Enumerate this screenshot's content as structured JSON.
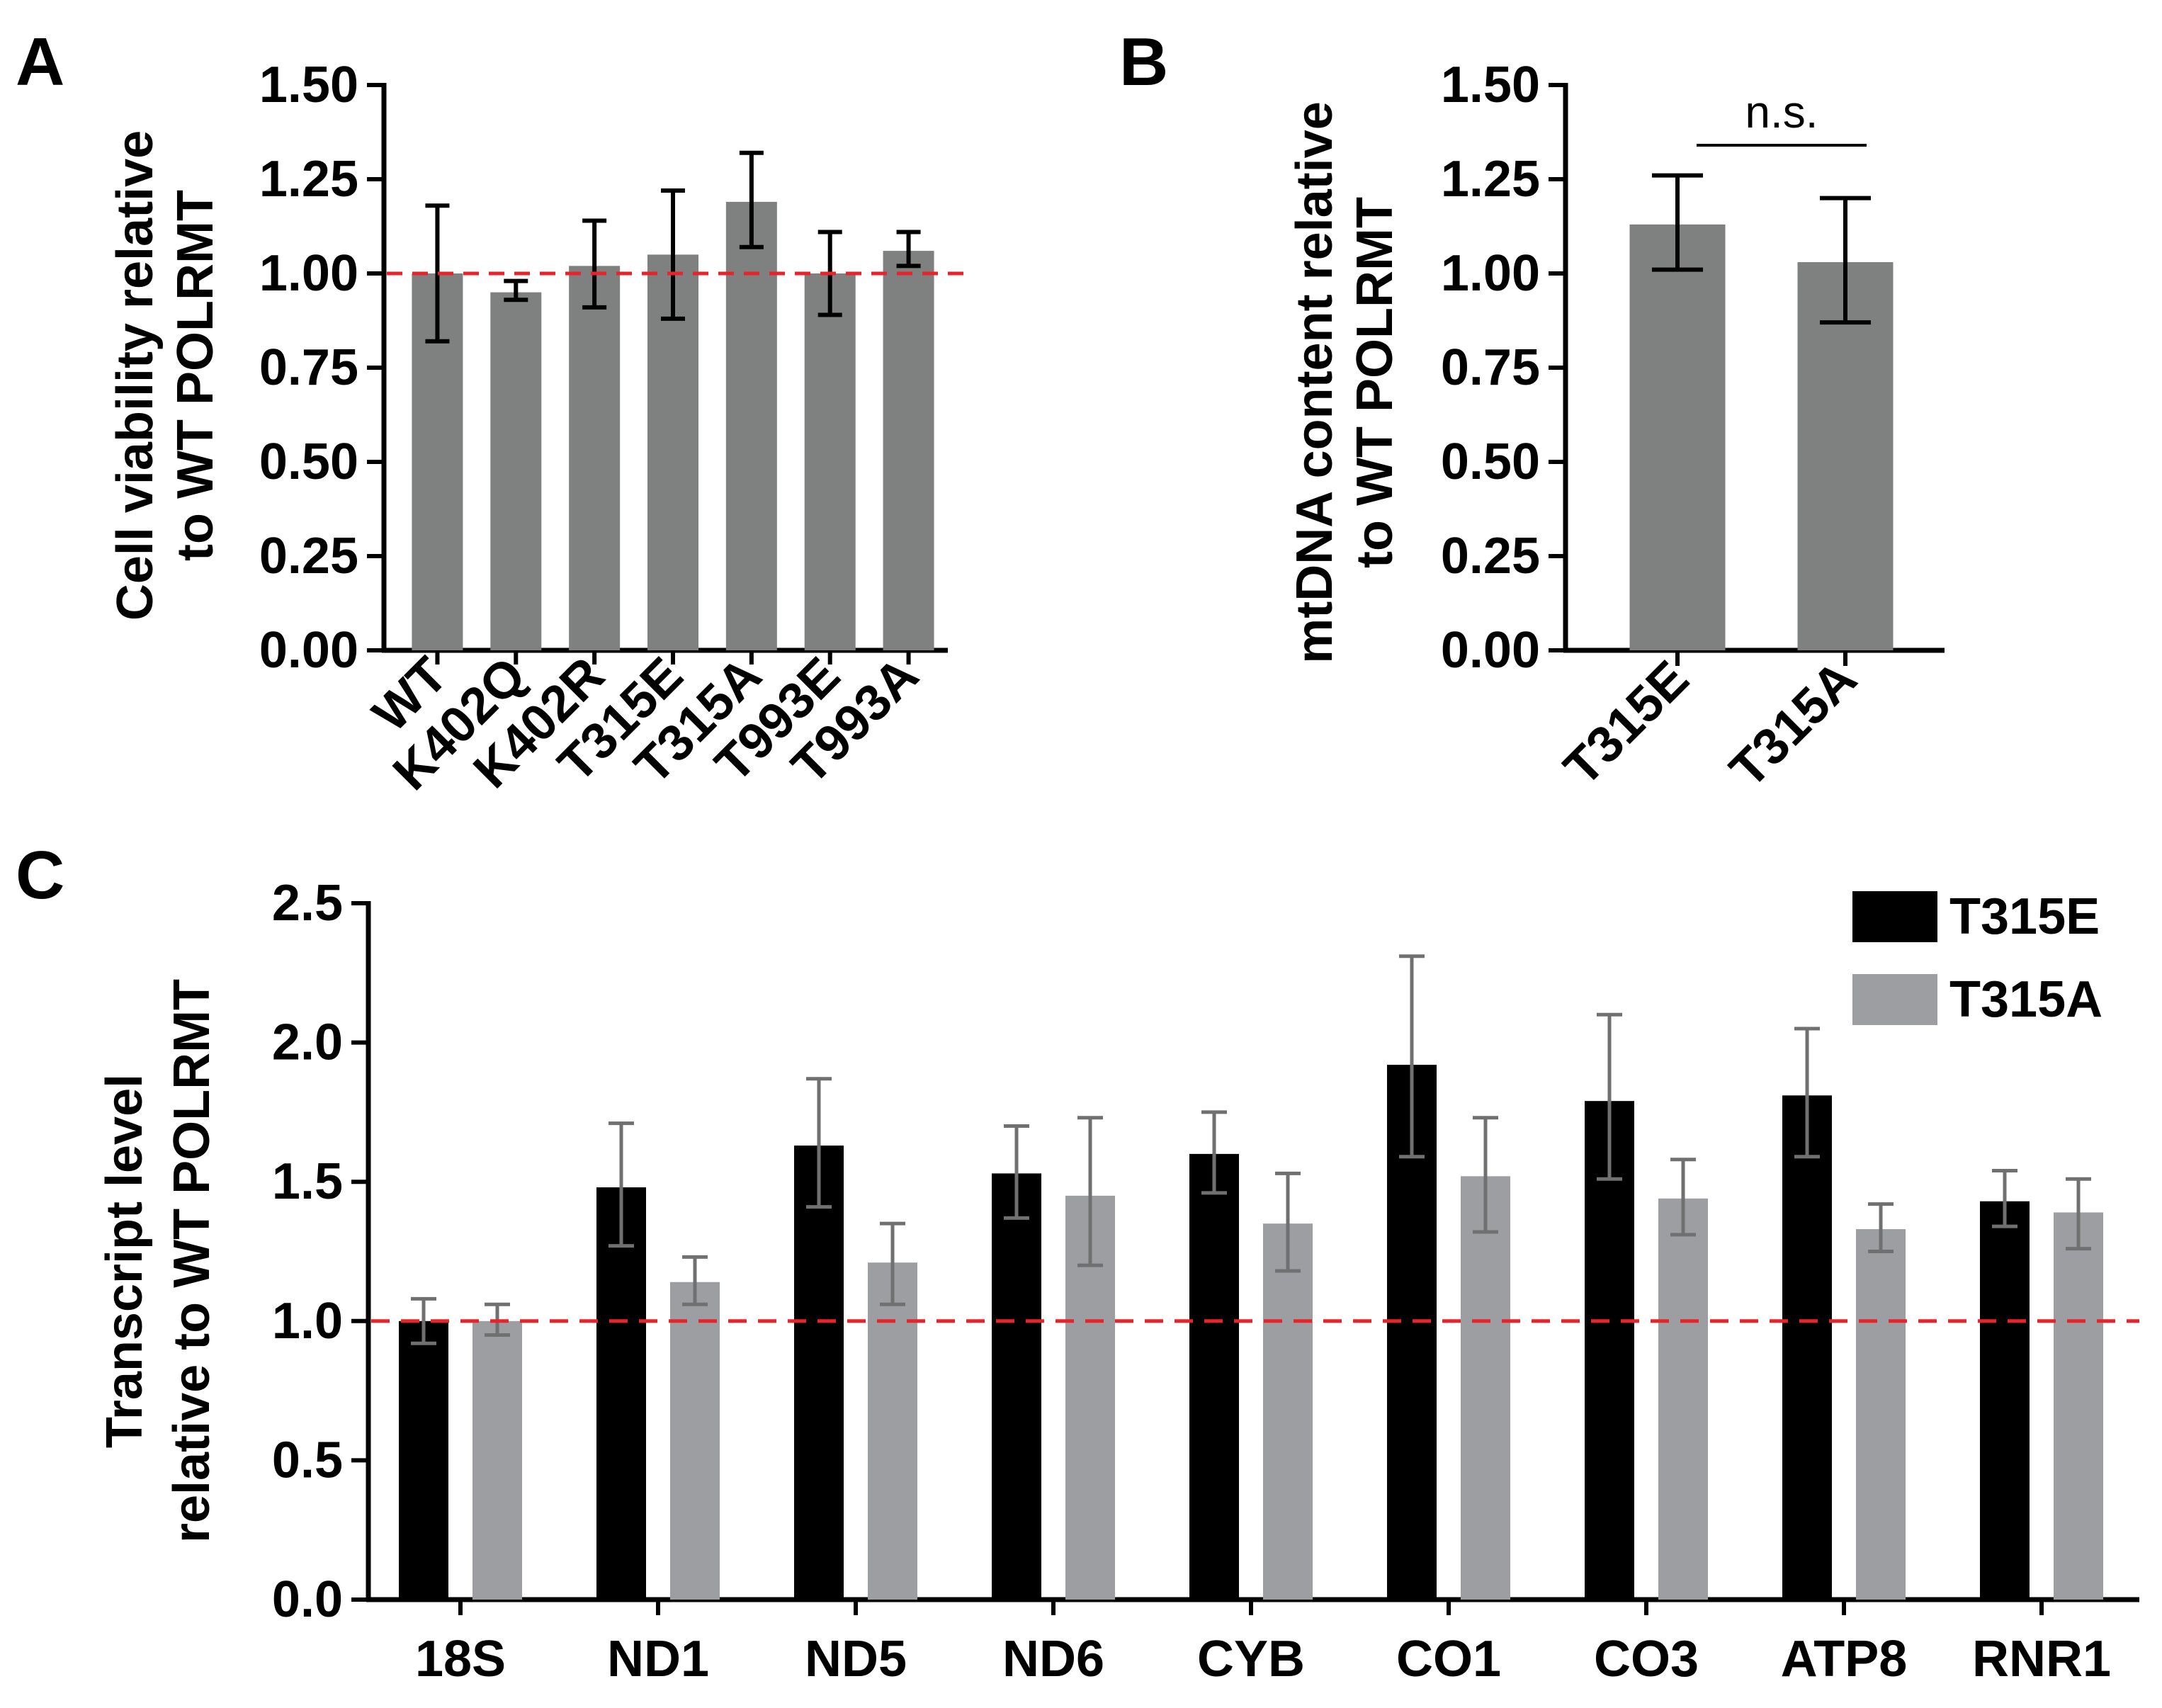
{
  "colors": {
    "axis": "#000000",
    "bar_gray": "#7f8180",
    "series_dark": "#000000",
    "series_light": "#9d9ea2",
    "err_light": "#707070",
    "reference_line": "#e8232a"
  },
  "chart_data": [
    {
      "panel": "A",
      "type": "bar",
      "ylabel_lines": [
        "Cell viability relative",
        "to WT POLRMT"
      ],
      "ylim": [
        0,
        1.5
      ],
      "yticks": [
        0.0,
        0.25,
        0.5,
        0.75,
        1.0,
        1.25,
        1.5
      ],
      "ytick_labels": [
        "0.00",
        "0.25",
        "0.50",
        "0.75",
        "1.00",
        "1.25",
        "1.50"
      ],
      "categories": [
        "WT",
        "K402Q",
        "K402R",
        "T315E",
        "T315A",
        "T993E",
        "T993A"
      ],
      "values": [
        1.0,
        0.95,
        1.02,
        1.05,
        1.19,
        1.0,
        1.06
      ],
      "error_low": [
        0.82,
        0.93,
        0.91,
        0.88,
        1.07,
        0.89,
        1.02
      ],
      "error_high": [
        1.18,
        0.98,
        1.14,
        1.22,
        1.32,
        1.11,
        1.11
      ],
      "reference_line": 1.0
    },
    {
      "panel": "B",
      "type": "bar",
      "ylabel_lines": [
        "mtDNA content relative",
        "to WT POLRMT"
      ],
      "ylim": [
        0,
        1.5
      ],
      "yticks": [
        0.0,
        0.25,
        0.5,
        0.75,
        1.0,
        1.25,
        1.5
      ],
      "ytick_labels": [
        "0.00",
        "0.25",
        "0.50",
        "0.75",
        "1.00",
        "1.25",
        "1.50"
      ],
      "categories": [
        "T315E",
        "T315A"
      ],
      "values": [
        1.13,
        1.03
      ],
      "error_low": [
        1.01,
        0.87
      ],
      "error_high": [
        1.26,
        1.2
      ],
      "annotation": "n.s."
    },
    {
      "panel": "C",
      "type": "bar",
      "ylabel_lines": [
        "Transcript level",
        "relative to WT POLRMT"
      ],
      "ylim": [
        0,
        2.5
      ],
      "yticks": [
        0.0,
        0.5,
        1.0,
        1.5,
        2.0,
        2.5
      ],
      "ytick_labels": [
        "0.0",
        "0.5",
        "1.0",
        "1.5",
        "2.0",
        "2.5"
      ],
      "categories": [
        "18S",
        "ND1",
        "ND5",
        "ND6",
        "CYB",
        "CO1",
        "CO3",
        "ATP8",
        "RNR1"
      ],
      "series": [
        {
          "name": "T315E",
          "values": [
            1.0,
            1.48,
            1.63,
            1.53,
            1.6,
            1.92,
            1.79,
            1.81,
            1.43
          ],
          "error_low": [
            0.92,
            1.27,
            1.41,
            1.37,
            1.46,
            1.59,
            1.51,
            1.59,
            1.34
          ],
          "error_high": [
            1.08,
            1.71,
            1.87,
            1.7,
            1.75,
            2.31,
            2.1,
            2.05,
            1.54
          ]
        },
        {
          "name": "T315A",
          "values": [
            1.0,
            1.14,
            1.21,
            1.45,
            1.35,
            1.52,
            1.44,
            1.33,
            1.39
          ],
          "error_low": [
            0.95,
            1.06,
            1.06,
            1.2,
            1.18,
            1.32,
            1.31,
            1.25,
            1.26
          ],
          "error_high": [
            1.06,
            1.23,
            1.35,
            1.73,
            1.53,
            1.73,
            1.58,
            1.42,
            1.51
          ]
        }
      ],
      "reference_line": 1.0,
      "legend_position": "top-right"
    }
  ]
}
